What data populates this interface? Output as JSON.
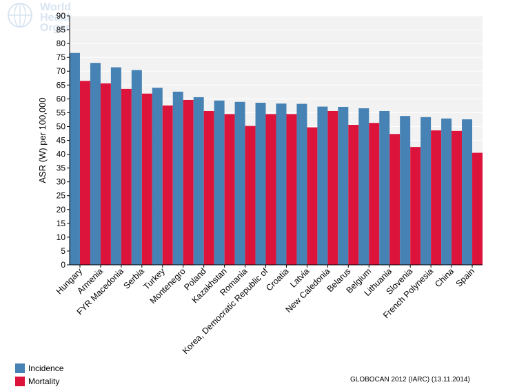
{
  "watermark": {
    "text": "World Health\nOrganization",
    "icon": "who-emblem-icon"
  },
  "chart_data": {
    "type": "bar",
    "ylabel": "ASR (W) per 100,000",
    "xlabel": "",
    "ylim": [
      0,
      90
    ],
    "ytick_step": 5,
    "grid": true,
    "legend_position": "bottom-left",
    "categories": [
      "Hungary",
      "Armenia",
      "FYR Macedonia",
      "Serbia",
      "Turkey",
      "Montenegro",
      "Poland",
      "Kazakhstan",
      "Romania",
      "Korea, Democratic Republic of",
      "Croatia",
      "Latvia",
      "New Caledonia",
      "Belarus",
      "Belgium",
      "Lithuania",
      "Slovenia",
      "French Polynesia",
      "China",
      "Spain"
    ],
    "series": [
      {
        "name": "Incidence",
        "color": "#4682b4",
        "values": [
          76.6,
          73.0,
          71.4,
          70.4,
          64.0,
          62.6,
          60.6,
          59.4,
          58.9,
          58.6,
          58.3,
          58.2,
          57.2,
          57.1,
          56.6,
          55.6,
          53.8,
          53.4,
          52.9,
          52.6
        ]
      },
      {
        "name": "Mortality",
        "color": "#dc143c",
        "values": [
          66.5,
          65.6,
          63.6,
          61.9,
          57.6,
          59.6,
          55.6,
          54.5,
          50.2,
          54.5,
          54.5,
          49.7,
          55.6,
          50.6,
          51.3,
          47.3,
          42.6,
          48.6,
          48.4,
          40.5
        ]
      }
    ]
  },
  "legend": {
    "items": [
      {
        "label": "Incidence",
        "color": "#4682b4"
      },
      {
        "label": "Mortality",
        "color": "#dc143c"
      }
    ]
  },
  "footer": {
    "source": "GLOBOCAN 2012 (IARC) (13.11.2014)"
  }
}
